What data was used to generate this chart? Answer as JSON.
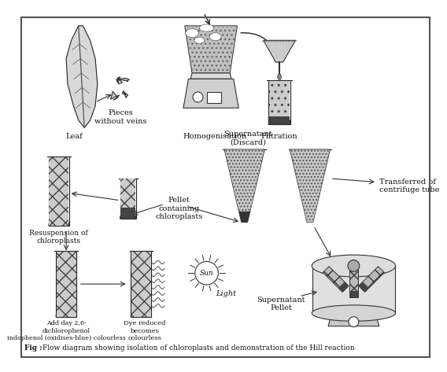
{
  "title": "Fig : Flow diagram showing isolation of chloroplasts and demonstration of the Hill reaction",
  "bg_color": "#ffffff",
  "text_color": "#111111",
  "labels": {
    "leaf": "Leaf",
    "pieces": "Pieces\nwithout veins",
    "homogenisation": "Homogenisation",
    "filtration": "Filtration",
    "supernatant_discard": "Supernatant\n(Discard)",
    "pellet": "Pellet\ncontaining\nchloroplasts",
    "resuspension": "Resuspension of\nchloroplasts",
    "transferred": "Transferred of\ncentrifuge tube",
    "supernatant_pellet": "Supernatant\nPellet",
    "add_dye": "Add day 2,6-\ndichlorophenol\nindophenol (oxidises-blue) colourless",
    "dye_reduced": "Dye reduced\nbecomes\ncolourless",
    "light": "Light",
    "sun": "Sun"
  }
}
